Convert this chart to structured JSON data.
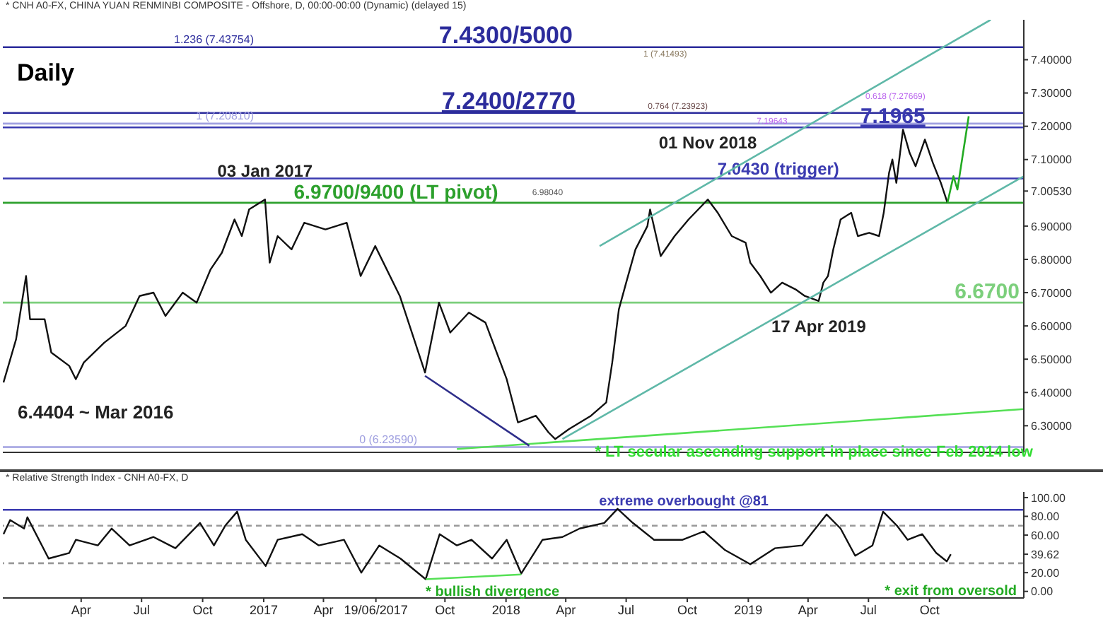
{
  "chart_data": [
    {
      "type": "line",
      "title": "Daily",
      "subtitle": "* CNH A0-FX, CHINA YUAN RENMINBI COMPOSITE - Offshore, D, 00:00-00:00 (Dynamic) (delayed 15)",
      "xlim": [
        "2015-12-05",
        "2020-02-20"
      ],
      "ylim": [
        6.22,
        7.52
      ],
      "yticks": [
        {
          "value": 6.3,
          "label": "6.30000"
        },
        {
          "value": 6.4,
          "label": "6.40000"
        },
        {
          "value": 6.5,
          "label": "6.50000"
        },
        {
          "value": 6.6,
          "label": "6.60000"
        },
        {
          "value": 6.7,
          "label": "6.70000"
        },
        {
          "value": 6.8,
          "label": "6.80000"
        },
        {
          "value": 6.9,
          "label": "6.90000"
        },
        {
          "value": 7.0053,
          "label": "7.00530"
        },
        {
          "value": 7.1,
          "label": "7.10000"
        },
        {
          "value": 7.2,
          "label": "7.20000"
        },
        {
          "value": 7.3,
          "label": "7.30000"
        },
        {
          "value": 7.4,
          "label": "7.40000"
        }
      ],
      "tick_labels": "y",
      "series": [
        {
          "color": "#111111",
          "x": [
            "2015-12-06",
            "2015-12-25",
            "2016-01-09",
            "2016-01-15",
            "2016-02-06",
            "2016-02-16",
            "2016-03-14",
            "2016-03-24",
            "2016-04-05",
            "2016-05-06",
            "2016-06-07",
            "2016-06-28",
            "2016-07-19",
            "2016-08-06",
            "2016-09-01",
            "2016-09-22",
            "2016-10-13",
            "2016-10-30",
            "2016-11-18",
            "2016-11-29",
            "2016-12-10",
            "2017-01-03",
            "2017-01-10",
            "2017-01-22",
            "2017-02-12",
            "2017-03-03",
            "2017-04-04",
            "2017-05-06",
            "2017-05-27",
            "2017-06-18",
            "2017-07-25",
            "2017-09-01",
            "2017-09-22",
            "2017-10-09",
            "2017-11-06",
            "2017-12-01",
            "2018-01-02",
            "2018-01-19",
            "2018-02-15",
            "2018-03-06",
            "2018-03-16",
            "2018-04-06",
            "2018-05-09",
            "2018-06-01",
            "2018-06-10",
            "2018-06-20",
            "2018-07-01",
            "2018-07-15",
            "2018-08-02",
            "2018-08-06",
            "2018-08-22",
            "2018-09-12",
            "2018-10-03",
            "2018-11-01",
            "2018-11-16",
            "2018-12-07",
            "2018-12-28",
            "2019-01-04",
            "2019-01-19",
            "2019-02-04",
            "2019-02-21",
            "2019-03-13",
            "2019-03-27",
            "2019-04-17",
            "2019-04-24",
            "2019-05-01",
            "2019-05-09",
            "2019-05-20",
            "2019-06-05",
            "2019-06-15",
            "2019-07-02",
            "2019-07-17",
            "2019-07-24",
            "2019-08-01",
            "2019-08-06",
            "2019-08-12",
            "2019-08-22",
            "2019-09-01",
            "2019-09-10",
            "2019-09-24",
            "2019-10-06",
            "2019-10-18",
            "2019-10-28"
          ],
          "values": [
            6.43,
            6.56,
            6.75,
            6.62,
            6.62,
            6.52,
            6.48,
            6.44,
            6.49,
            6.55,
            6.6,
            6.69,
            6.7,
            6.63,
            6.7,
            6.67,
            6.77,
            6.82,
            6.92,
            6.87,
            6.95,
            6.98,
            6.79,
            6.87,
            6.83,
            6.91,
            6.89,
            6.91,
            6.75,
            6.84,
            6.69,
            6.46,
            6.67,
            6.58,
            6.64,
            6.61,
            6.44,
            6.31,
            6.33,
            6.28,
            6.26,
            6.29,
            6.33,
            6.37,
            6.49,
            6.65,
            6.73,
            6.83,
            6.9,
            6.95,
            6.81,
            6.87,
            6.92,
            6.98,
            6.94,
            6.87,
            6.85,
            6.79,
            6.75,
            6.7,
            6.73,
            6.71,
            6.69,
            6.675,
            6.73,
            6.75,
            6.83,
            6.92,
            6.94,
            6.87,
            6.88,
            6.87,
            6.94,
            7.06,
            7.1,
            7.03,
            7.19,
            7.12,
            7.08,
            7.16,
            7.09,
            7.03,
            6.97
          ]
        },
        {
          "color": "#22aa22",
          "x": [
            "2019-10-28",
            "2019-11-06",
            "2019-11-12",
            "2019-11-29"
          ],
          "values": [
            6.97,
            7.05,
            7.01,
            7.23
          ]
        },
        {
          "color": "#5fb8a8",
          "x": [
            "2018-05-22",
            "2020-01-01"
          ],
          "values": [
            6.84,
            7.52
          ]
        },
        {
          "color": "#5fb8a8",
          "x": [
            "2018-03-27",
            "2020-02-20"
          ],
          "values": [
            6.26,
            7.05
          ]
        },
        {
          "color": "#55e055",
          "x": [
            "2017-10-19",
            "2020-02-20"
          ],
          "values": [
            6.23,
            6.35
          ]
        },
        {
          "color": "#2e2e8a",
          "x": [
            "2017-09-01",
            "2018-02-05"
          ],
          "values": [
            6.45,
            6.24
          ]
        }
      ],
      "ref_lines": [
        {
          "axis": "y",
          "value": 7.43754,
          "label": "1.236 (7.43754)",
          "color": "#2c2c9c"
        },
        {
          "axis": "y",
          "value": 7.24,
          "label": "7.2400/2770",
          "color": "#2c2c9c"
        },
        {
          "axis": "y",
          "value": 7.2081,
          "label": "1 (7.20810)",
          "color": "#a0a0e0"
        },
        {
          "axis": "y",
          "value": 7.1965,
          "label": "7.1965",
          "color": "#3a3ab0"
        },
        {
          "axis": "y",
          "value": 7.043,
          "label": "7.0430 (trigger)",
          "color": "#3a3ab0"
        },
        {
          "axis": "y",
          "value": 6.97,
          "label": "6.9700/9400 (LT pivot)",
          "color": "#2ca02c"
        },
        {
          "axis": "y",
          "value": 6.67,
          "label": "6.6700",
          "color": "#7ccf7c"
        },
        {
          "axis": "y",
          "value": 6.2359,
          "label": "0 (6.23590)",
          "color": "#a0a0e0"
        }
      ],
      "annotations": [
        {
          "text": "7.4300/5000",
          "x": "2017-09-22",
          "y": 7.43754
        },
        {
          "text": "0.764 (7.23923)",
          "x": "2018-11-01",
          "y": 7.239
        },
        {
          "text": "7.19643",
          "x": "2019-03-01",
          "y": 7.196
        },
        {
          "text": "6.98040",
          "x": "2018-02-01",
          "y": 6.98
        },
        {
          "text": "03 Jan 2017",
          "x": "2017-01-03",
          "y": 6.98
        },
        {
          "text": "01 Nov 2018",
          "x": "2018-11-01",
          "y": 6.98
        },
        {
          "text": "17 Apr 2019",
          "x": "2019-04-17",
          "y": 6.675
        },
        {
          "text": "6.4404 ~ Mar 2016",
          "x": "2016-03-24",
          "y": 6.44
        },
        {
          "text": "* LT secular ascending support in place since Feb 2014 low",
          "x": "2018-06-01",
          "y": 6.25
        },
        "1 (7.41493)",
        "0.618 (7.27669)"
      ]
    },
    {
      "type": "line",
      "title": "* Relative Strength Index - CNH A0-FX, D",
      "xlim": [
        "2015-12-05",
        "2020-02-20"
      ],
      "ylim": [
        -7,
        106
      ],
      "xticks": [
        {
          "value": "2016-04-01",
          "label": "Apr"
        },
        {
          "value": "2016-07-01",
          "label": "Jul"
        },
        {
          "value": "2016-10-01",
          "label": "Oct"
        },
        {
          "value": "2017-01-01",
          "label": "2017"
        },
        {
          "value": "2017-04-01",
          "label": "Apr"
        },
        {
          "value": "2017-06-19",
          "label": "19/06/2017"
        },
        {
          "value": "2017-10-01",
          "label": "Oct"
        },
        {
          "value": "2018-01-01",
          "label": "2018"
        },
        {
          "value": "2018-04-01",
          "label": "Apr"
        },
        {
          "value": "2018-07-01",
          "label": "Jul"
        },
        {
          "value": "2018-10-01",
          "label": "Oct"
        },
        {
          "value": "2019-01-01",
          "label": "2019"
        },
        {
          "value": "2019-04-01",
          "label": "Apr"
        },
        {
          "value": "2019-07-01",
          "label": "Jul"
        },
        {
          "value": "2019-10-01",
          "label": "Oct"
        }
      ],
      "yticks": [
        {
          "value": 0,
          "label": "0.00"
        },
        {
          "value": 20,
          "label": "20.00"
        },
        {
          "value": 39.62,
          "label": "39.62"
        },
        {
          "value": 60,
          "label": "60.00"
        },
        {
          "value": 80,
          "label": "80.00"
        },
        {
          "value": 100,
          "label": "100.00"
        }
      ],
      "series": [
        {
          "color": "#111111",
          "x": [
            "2015-12-06",
            "2015-12-16",
            "2016-01-06",
            "2016-01-11",
            "2016-02-12",
            "2016-03-14",
            "2016-03-24",
            "2016-04-26",
            "2016-05-17",
            "2016-06-13",
            "2016-07-19",
            "2016-08-21",
            "2016-09-27",
            "2016-10-18",
            "2016-11-04",
            "2016-11-22",
            "2016-12-05",
            "2017-01-04",
            "2017-01-22",
            "2017-02-28",
            "2017-03-25",
            "2017-05-02",
            "2017-05-28",
            "2017-06-24",
            "2017-07-26",
            "2017-09-02",
            "2017-09-23",
            "2017-10-19",
            "2017-11-10",
            "2017-12-11",
            "2018-01-02",
            "2018-01-24",
            "2018-02-25",
            "2018-03-27",
            "2018-04-22",
            "2018-05-29",
            "2018-06-18",
            "2018-07-11",
            "2018-08-12",
            "2018-09-24",
            "2018-10-26",
            "2018-11-27",
            "2019-01-04",
            "2019-02-10",
            "2019-03-23",
            "2019-04-29",
            "2019-05-20",
            "2019-06-11",
            "2019-07-07",
            "2019-07-23",
            "2019-08-13",
            "2019-08-29",
            "2019-09-20",
            "2019-10-11",
            "2019-10-27",
            "2019-11-02"
          ],
          "values": [
            61,
            76,
            67,
            79,
            35,
            41,
            55,
            49,
            67,
            49,
            58,
            46,
            73,
            49,
            70,
            85,
            55,
            27,
            55,
            61,
            49,
            55,
            20,
            49,
            35,
            13,
            61,
            49,
            55,
            35,
            55,
            19,
            55,
            58,
            67,
            73,
            88,
            73,
            55,
            55,
            64,
            44,
            29,
            46,
            49,
            82,
            67,
            38,
            49,
            85,
            70,
            55,
            61,
            41,
            32,
            39.62
          ]
        },
        {
          "color": "#55e055",
          "x": [
            "2017-09-02",
            "2018-01-24"
          ],
          "values": [
            13,
            18
          ]
        }
      ],
      "ref_lines": [
        {
          "axis": "y",
          "value": 87,
          "label": "extreme overbought @81",
          "color": "#3a3ab0"
        },
        {
          "axis": "y",
          "value": 70,
          "line_style": "dashed",
          "color": "#999999"
        },
        {
          "axis": "y",
          "value": 30,
          "line_style": "dashed",
          "color": "#999999"
        }
      ],
      "annotations": [
        {
          "text": "* bullish divergence",
          "x": "2017-09-02",
          "y": 13
        },
        {
          "text": "* exit from oversold",
          "x": "2019-11-02",
          "y": 32
        }
      ]
    }
  ]
}
